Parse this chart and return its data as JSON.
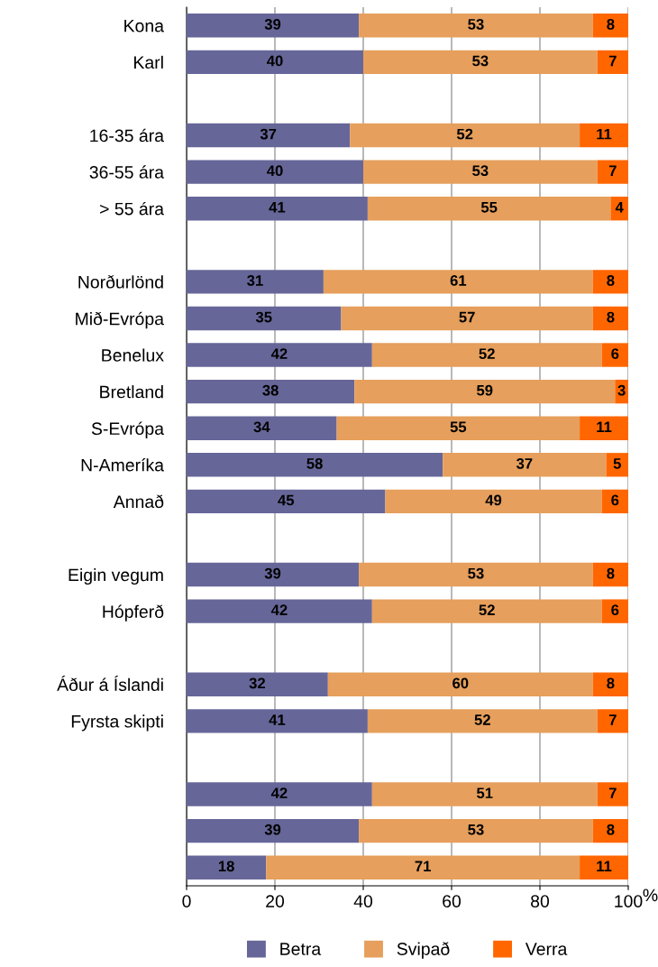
{
  "chart_data": {
    "type": "bar",
    "orientation": "horizontal",
    "stacked": true,
    "xlabel": "%",
    "categories": [
      "Kona",
      "Karl",
      null,
      "16-35 ára",
      "36-55 ára",
      "> 55 ára",
      null,
      "Norðurlönd",
      "Mið-Evrópa",
      "Benelux",
      "Bretland",
      "S-Evrópa",
      "N-Ameríka",
      "Annað",
      null,
      "Eigin vegum",
      "Hópferð",
      null,
      "Áður á Íslandi",
      "Fyrsta skipti",
      null,
      null,
      null,
      null
    ],
    "series": [
      {
        "name": "Betra",
        "color": "#666699",
        "values": [
          39,
          40,
          null,
          37,
          40,
          41,
          null,
          31,
          35,
          42,
          38,
          34,
          58,
          45,
          null,
          39,
          42,
          null,
          32,
          41,
          null,
          42,
          39,
          18
        ]
      },
      {
        "name": "Svipað",
        "color": "#e69f5c",
        "values": [
          53,
          53,
          null,
          52,
          53,
          55,
          null,
          61,
          57,
          52,
          59,
          55,
          37,
          49,
          null,
          53,
          52,
          null,
          60,
          52,
          null,
          51,
          53,
          71
        ]
      },
      {
        "name": "Verra",
        "color": "#ff6600",
        "values": [
          8,
          7,
          null,
          11,
          7,
          4,
          null,
          8,
          8,
          6,
          3,
          11,
          5,
          6,
          null,
          8,
          6,
          null,
          8,
          7,
          null,
          7,
          8,
          11
        ]
      }
    ],
    "xlim": [
      0,
      100
    ],
    "xticks": [
      0,
      20,
      40,
      60,
      80,
      100
    ],
    "grid": "x",
    "data_labels": true,
    "legend": "bottom"
  }
}
